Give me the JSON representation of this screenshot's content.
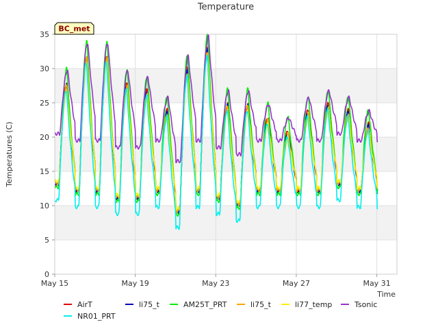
{
  "chart_data": {
    "type": "line",
    "title": "Temperature",
    "xlabel": "Time",
    "ylabel": "Temperatures (C)",
    "badge": "BC_met",
    "xlim": [
      "2024-05-15",
      "2024-06-01"
    ],
    "x_ticks": [
      {
        "date": "2024-05-15",
        "label": "May 15"
      },
      {
        "date": "2024-05-19",
        "label": "May 19"
      },
      {
        "date": "2024-05-23",
        "label": "May 23"
      },
      {
        "date": "2024-05-27",
        "label": "May 27"
      },
      {
        "date": "2024-05-31",
        "label": "May 31"
      }
    ],
    "ylim": [
      0,
      35
    ],
    "y_ticks": [
      0,
      5,
      10,
      15,
      20,
      25,
      30,
      35
    ],
    "grid": true,
    "banded_background": true,
    "legend_position": "bottom",
    "daily": {
      "days": [
        "2024-05-15",
        "2024-05-16",
        "2024-05-17",
        "2024-05-18",
        "2024-05-19",
        "2024-05-20",
        "2024-05-21",
        "2024-05-22",
        "2024-05-23",
        "2024-05-24",
        "2024-05-25",
        "2024-05-26",
        "2024-05-27",
        "2024-05-28",
        "2024-05-29",
        "2024-05-30",
        "2024-05-31",
        "2024-06-01"
      ],
      "AirT_max": [
        28,
        32,
        32,
        28,
        27,
        24,
        30,
        33,
        25,
        25,
        23,
        21,
        24,
        25,
        24,
        22,
        24,
        24
      ],
      "AirT_min": [
        13,
        12,
        12,
        11,
        11,
        12,
        9,
        12,
        11,
        10,
        12,
        12,
        12,
        12,
        13,
        12,
        12,
        12
      ]
    },
    "series": [
      {
        "name": "AirT",
        "color": "#dd0000",
        "max_offset": 0,
        "min_offset": 0,
        "phase": 0.0
      },
      {
        "name": "li75_t",
        "color": "#0000bb",
        "max_offset": -0.3,
        "min_offset": 0.2,
        "phase": 0.0
      },
      {
        "name": "AM25T_PRT",
        "color": "#00ee00",
        "max_offset": 2.0,
        "min_offset": -0.3,
        "phase": 0.0
      },
      {
        "name": "li75_t",
        "color": "#ffa500",
        "max_offset": -0.5,
        "min_offset": 0.3,
        "phase": 0.0
      },
      {
        "name": "li77_temp",
        "color": "#ffee00",
        "max_offset": -1.2,
        "min_offset": 0.6,
        "phase": 0.0
      },
      {
        "name": "Tsonic",
        "color": "#9932cc",
        "max_offset": 1.8,
        "min_offset": 7.5,
        "phase": 0.04
      },
      {
        "name": "NR01_PRT",
        "color": "#00eeee",
        "max_offset": -1.0,
        "min_offset": -2.2,
        "phase": -0.02
      }
    ]
  }
}
